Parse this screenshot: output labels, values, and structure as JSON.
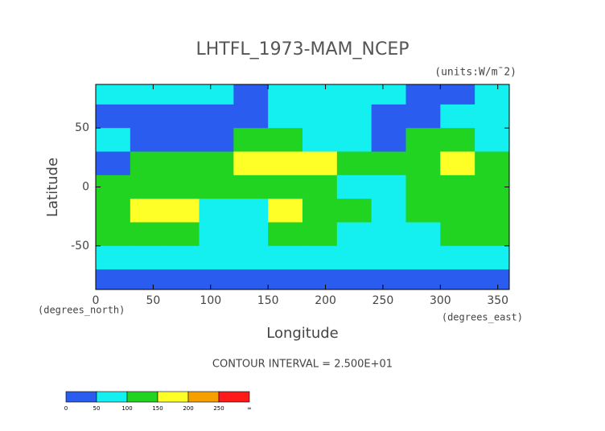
{
  "chart_data": {
    "type": "heatmap",
    "title": "LHTFL_1973-MAM_NCEP",
    "units": "(units:W/m¯2)",
    "xlabel": "Longitude",
    "ylabel": "Latitude",
    "y_units": "(degrees_north)",
    "x_units": "(degrees_east)",
    "footnote": "CONTOUR INTERVAL = 2.500E+01",
    "xlim": [
      0,
      360
    ],
    "ylim": [
      -87,
      87
    ],
    "xticks": [
      0,
      50,
      100,
      150,
      200,
      250,
      300,
      350
    ],
    "yticks": [
      -50,
      0,
      50
    ],
    "x": [
      15,
      45,
      75,
      105,
      135,
      165,
      195,
      225,
      255,
      285,
      315,
      345
    ],
    "y": [
      80,
      60,
      40,
      20,
      0,
      -20,
      -40,
      -60,
      -80
    ],
    "values": [
      [
        60,
        60,
        55,
        55,
        40,
        55,
        60,
        60,
        55,
        40,
        40,
        60
      ],
      [
        30,
        20,
        15,
        15,
        20,
        60,
        70,
        60,
        20,
        20,
        70,
        80
      ],
      [
        60,
        40,
        20,
        30,
        110,
        100,
        90,
        80,
        30,
        120,
        110,
        80
      ],
      [
        30,
        110,
        130,
        100,
        150,
        170,
        160,
        140,
        100,
        140,
        170,
        120
      ],
      [
        110,
        110,
        120,
        120,
        130,
        120,
        110,
        80,
        60,
        110,
        120,
        140
      ],
      [
        130,
        170,
        160,
        60,
        60,
        170,
        140,
        120,
        90,
        100,
        130,
        110
      ],
      [
        100,
        110,
        100,
        90,
        90,
        100,
        100,
        90,
        80,
        70,
        100,
        100
      ],
      [
        60,
        60,
        60,
        60,
        60,
        60,
        60,
        60,
        60,
        60,
        60,
        60
      ],
      [
        10,
        10,
        10,
        10,
        10,
        10,
        10,
        10,
        10,
        10,
        10,
        10
      ]
    ],
    "colorbar": {
      "bounds": [
        0,
        50,
        100,
        150,
        200,
        250
      ],
      "end_label": "∞",
      "colors": [
        "#2a5cf0",
        "#14f0f0",
        "#22d422",
        "#ffff28",
        "#f5a000",
        "#ff1a1a"
      ]
    }
  }
}
